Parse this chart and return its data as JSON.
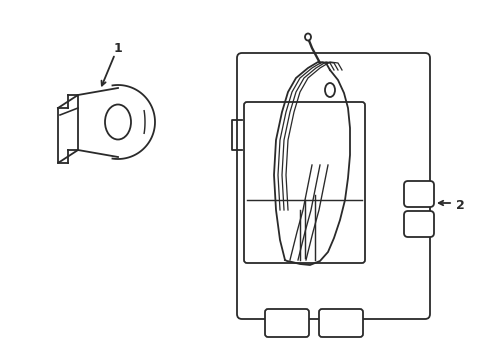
{
  "bg_color": "#ffffff",
  "line_color": "#2a2a2a",
  "lw": 1.3,
  "fig_w": 4.89,
  "fig_h": 3.6,
  "label1": "1",
  "label2": "2"
}
